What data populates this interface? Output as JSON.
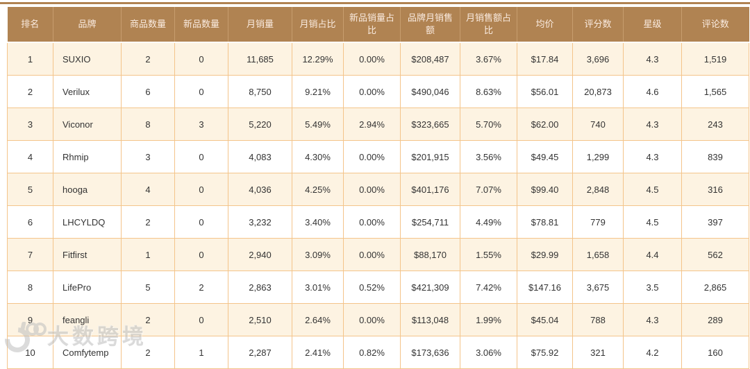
{
  "colors": {
    "header_bg": "#b08352",
    "header_text": "#faebe0",
    "row_alt_bg": "#fdf3e2",
    "row_bg": "#ffffff",
    "grid_border": "#f4c48a",
    "top_line": "#b08352",
    "text": "#333333",
    "watermark": "#bfbfbf"
  },
  "table": {
    "columns": [
      {
        "key": "rank",
        "label": "排名"
      },
      {
        "key": "brand",
        "label": "品牌"
      },
      {
        "key": "products",
        "label": "商品数量"
      },
      {
        "key": "new_products",
        "label": "新品数量"
      },
      {
        "key": "monthly_sales",
        "label": "月销量"
      },
      {
        "key": "monthly_sales_share",
        "label": "月销占比"
      },
      {
        "key": "new_sales_share",
        "label": "新品销量占比"
      },
      {
        "key": "monthly_revenue",
        "label": "品牌月销售额"
      },
      {
        "key": "monthly_revenue_share",
        "label": "月销售额占比"
      },
      {
        "key": "avg_price",
        "label": "均价"
      },
      {
        "key": "rating_count",
        "label": "评分数"
      },
      {
        "key": "star",
        "label": "星级"
      },
      {
        "key": "review_count",
        "label": "评论数"
      }
    ],
    "rows": [
      {
        "rank": "1",
        "brand": "SUXIO",
        "products": "2",
        "new_products": "0",
        "monthly_sales": "11,685",
        "monthly_sales_share": "12.29%",
        "new_sales_share": "0.00%",
        "monthly_revenue": "$208,487",
        "monthly_revenue_share": "3.67%",
        "avg_price": "$17.84",
        "rating_count": "3,696",
        "star": "4.3",
        "review_count": "1,519"
      },
      {
        "rank": "2",
        "brand": "Verilux",
        "products": "6",
        "new_products": "0",
        "monthly_sales": "8,750",
        "monthly_sales_share": "9.21%",
        "new_sales_share": "0.00%",
        "monthly_revenue": "$490,046",
        "monthly_revenue_share": "8.63%",
        "avg_price": "$56.01",
        "rating_count": "20,873",
        "star": "4.6",
        "review_count": "1,565"
      },
      {
        "rank": "3",
        "brand": "Viconor",
        "products": "8",
        "new_products": "3",
        "monthly_sales": "5,220",
        "monthly_sales_share": "5.49%",
        "new_sales_share": "2.94%",
        "monthly_revenue": "$323,665",
        "monthly_revenue_share": "5.70%",
        "avg_price": "$62.00",
        "rating_count": "740",
        "star": "4.3",
        "review_count": "243"
      },
      {
        "rank": "4",
        "brand": "Rhmip",
        "products": "3",
        "new_products": "0",
        "monthly_sales": "4,083",
        "monthly_sales_share": "4.30%",
        "new_sales_share": "0.00%",
        "monthly_revenue": "$201,915",
        "monthly_revenue_share": "3.56%",
        "avg_price": "$49.45",
        "rating_count": "1,299",
        "star": "4.3",
        "review_count": "839"
      },
      {
        "rank": "5",
        "brand": "hooga",
        "products": "4",
        "new_products": "0",
        "monthly_sales": "4,036",
        "monthly_sales_share": "4.25%",
        "new_sales_share": "0.00%",
        "monthly_revenue": "$401,176",
        "monthly_revenue_share": "7.07%",
        "avg_price": "$99.40",
        "rating_count": "2,848",
        "star": "4.5",
        "review_count": "316"
      },
      {
        "rank": "6",
        "brand": "LHCYLDQ",
        "products": "2",
        "new_products": "0",
        "monthly_sales": "3,232",
        "monthly_sales_share": "3.40%",
        "new_sales_share": "0.00%",
        "monthly_revenue": "$254,711",
        "monthly_revenue_share": "4.49%",
        "avg_price": "$78.81",
        "rating_count": "779",
        "star": "4.5",
        "review_count": "397"
      },
      {
        "rank": "7",
        "brand": "Fitfirst",
        "products": "1",
        "new_products": "0",
        "monthly_sales": "2,940",
        "monthly_sales_share": "3.09%",
        "new_sales_share": "0.00%",
        "monthly_revenue": "$88,170",
        "monthly_revenue_share": "1.55%",
        "avg_price": "$29.99",
        "rating_count": "1,658",
        "star": "4.4",
        "review_count": "562"
      },
      {
        "rank": "8",
        "brand": "LifePro",
        "products": "5",
        "new_products": "2",
        "monthly_sales": "2,863",
        "monthly_sales_share": "3.01%",
        "new_sales_share": "0.52%",
        "monthly_revenue": "$421,309",
        "monthly_revenue_share": "7.42%",
        "avg_price": "$147.16",
        "rating_count": "3,675",
        "star": "3.5",
        "review_count": "2,865"
      },
      {
        "rank": "9",
        "brand": "feangli",
        "products": "2",
        "new_products": "0",
        "monthly_sales": "2,510",
        "monthly_sales_share": "2.64%",
        "new_sales_share": "0.00%",
        "monthly_revenue": "$113,048",
        "monthly_revenue_share": "1.99%",
        "avg_price": "$45.04",
        "rating_count": "788",
        "star": "4.3",
        "review_count": "289"
      },
      {
        "rank": "10",
        "brand": "Comfytemp",
        "products": "2",
        "new_products": "1",
        "monthly_sales": "2,287",
        "monthly_sales_share": "2.41%",
        "new_sales_share": "0.82%",
        "monthly_revenue": "$173,636",
        "monthly_revenue_share": "3.06%",
        "avg_price": "$75.92",
        "rating_count": "321",
        "star": "4.2",
        "review_count": "160"
      }
    ]
  },
  "watermark": {
    "text": "大数跨境",
    "logo": "snail-100-glasses-logo"
  }
}
